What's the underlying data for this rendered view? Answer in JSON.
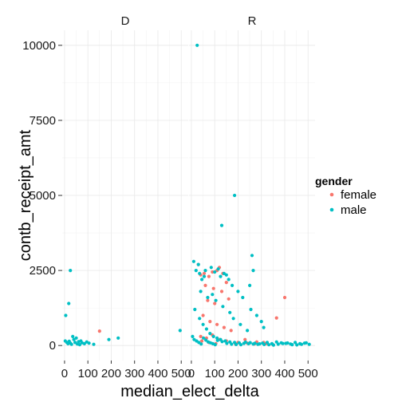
{
  "chart_data": {
    "type": "scatter",
    "xlabel": "median_elect_delta",
    "ylabel": "contb_receipt_amt",
    "xlim": [
      -10,
      530
    ],
    "ylim": [
      -500,
      10500
    ],
    "xticks": [
      "0",
      "100",
      "200",
      "300",
      "400",
      "500"
    ],
    "yticks": [
      "0",
      "2500",
      "5000",
      "7500",
      "10000"
    ],
    "grid": true,
    "legend": {
      "title": "gender",
      "position": "right"
    },
    "facets": [
      {
        "label": "D",
        "series": [
          {
            "name": "female",
            "color": "#F8766D",
            "points": [
              [
                150,
                480
              ]
            ]
          },
          {
            "name": "male",
            "color": "#00BFC4",
            "points": [
              [
                5,
                1000
              ],
              [
                18,
                1400
              ],
              [
                25,
                2500
              ],
              [
                3,
                150
              ],
              [
                10,
                100
              ],
              [
                15,
                60
              ],
              [
                20,
                140
              ],
              [
                25,
                80
              ],
              [
                30,
                40
              ],
              [
                35,
                300
              ],
              [
                40,
                200
              ],
              [
                45,
                100
              ],
              [
                50,
                250
              ],
              [
                55,
                50
              ],
              [
                60,
                130
              ],
              [
                65,
                30
              ],
              [
                70,
                150
              ],
              [
                75,
                90
              ],
              [
                85,
                60
              ],
              [
                95,
                120
              ],
              [
                105,
                80
              ],
              [
                125,
                40
              ],
              [
                190,
                200
              ],
              [
                230,
                250
              ],
              [
                495,
                500
              ]
            ]
          }
        ]
      },
      {
        "label": "R",
        "series": [
          {
            "name": "female",
            "color": "#F8766D",
            "points": [
              [
                30,
                2700
              ],
              [
                40,
                2350
              ],
              [
                55,
                2400
              ],
              [
                75,
                2300
              ],
              [
                90,
                2450
              ],
              [
                110,
                2500
              ],
              [
                120,
                2600
              ],
              [
                135,
                2400
              ],
              [
                60,
                2000
              ],
              [
                95,
                1900
              ],
              [
                130,
                1800
              ],
              [
                150,
                2100
              ],
              [
                70,
                1500
              ],
              [
                100,
                1400
              ],
              [
                160,
                1550
              ],
              [
                50,
                1000
              ],
              [
                80,
                800
              ],
              [
                110,
                700
              ],
              [
                140,
                600
              ],
              [
                170,
                500
              ],
              [
                40,
                300
              ],
              [
                65,
                250
              ],
              [
                90,
                350
              ],
              [
                120,
                200
              ],
              [
                150,
                150
              ],
              [
                200,
                100
              ],
              [
                240,
                80
              ],
              [
                280,
                120
              ],
              [
                320,
                60
              ],
              [
                365,
                920
              ],
              [
                400,
                1600
              ],
              [
                45,
                150
              ],
              [
                75,
                100
              ],
              [
                105,
                60
              ],
              [
                190,
                40
              ],
              [
                230,
                200
              ],
              [
                270,
                50
              ],
              [
                310,
                100
              ],
              [
                350,
                30
              ]
            ]
          },
          {
            "name": "male",
            "color": "#00BFC4",
            "points": [
              [
                25,
                10000
              ],
              [
                130,
                4000
              ],
              [
                185,
                5000
              ],
              [
                260,
                3000
              ],
              [
                265,
                2500
              ],
              [
                10,
                2800
              ],
              [
                20,
                2500
              ],
              [
                30,
                2700
              ],
              [
                35,
                2400
              ],
              [
                45,
                2200
              ],
              [
                55,
                2300
              ],
              [
                60,
                2500
              ],
              [
                85,
                2600
              ],
              [
                100,
                2450
              ],
              [
                115,
                2550
              ],
              [
                125,
                2300
              ],
              [
                140,
                2400
              ],
              [
                150,
                2350
              ],
              [
                160,
                2200
              ],
              [
                175,
                2000
              ],
              [
                200,
                1800
              ],
              [
                220,
                1600
              ],
              [
                250,
                2000
              ],
              [
                255,
                1200
              ],
              [
                280,
                1000
              ],
              [
                300,
                800
              ],
              [
                310,
                600
              ],
              [
                40,
                1800
              ],
              [
                70,
                1600
              ],
              [
                90,
                1700
              ],
              [
                105,
                1500
              ],
              [
                135,
                1300
              ],
              [
                165,
                1100
              ],
              [
                180,
                900
              ],
              [
                210,
                700
              ],
              [
                240,
                500
              ],
              [
                15,
                1200
              ],
              [
                35,
                900
              ],
              [
                50,
                700
              ],
              [
                65,
                550
              ],
              [
                80,
                400
              ],
              [
                95,
                300
              ],
              [
                110,
                250
              ],
              [
                125,
                200
              ],
              [
                145,
                150
              ],
              [
                165,
                120
              ],
              [
                185,
                100
              ],
              [
                205,
                90
              ],
              [
                225,
                70
              ],
              [
                245,
                60
              ],
              [
                265,
                50
              ],
              [
                285,
                40
              ],
              [
                305,
                80
              ],
              [
                325,
                100
              ],
              [
                345,
                60
              ],
              [
                365,
                120
              ],
              [
                385,
                90
              ],
              [
                405,
                70
              ],
              [
                425,
                50
              ],
              [
                445,
                100
              ],
              [
                465,
                60
              ],
              [
                485,
                80
              ],
              [
                505,
                40
              ],
              [
                5,
                300
              ],
              [
                12,
                200
              ],
              [
                22,
                150
              ],
              [
                32,
                100
              ],
              [
                42,
                50
              ],
              [
                52,
                250
              ],
              [
                62,
                180
              ],
              [
                72,
                120
              ],
              [
                82,
                90
              ],
              [
                92,
                60
              ],
              [
                102,
                30
              ],
              [
                112,
                170
              ],
              [
                132,
                130
              ],
              [
                152,
                70
              ],
              [
                172,
                45
              ],
              [
                192,
                35
              ],
              [
                212,
                25
              ],
              [
                232,
                110
              ],
              [
                252,
                95
              ],
              [
                272,
                75
              ],
              [
                292,
                55
              ],
              [
                312,
                35
              ],
              [
                332,
                25
              ],
              [
                352,
                15
              ],
              [
                372,
                45
              ],
              [
                392,
                65
              ],
              [
                412,
                85
              ],
              [
                432,
                30
              ],
              [
                452,
                20
              ],
              [
                472,
                40
              ],
              [
                492,
                90
              ]
            ]
          }
        ]
      }
    ]
  }
}
